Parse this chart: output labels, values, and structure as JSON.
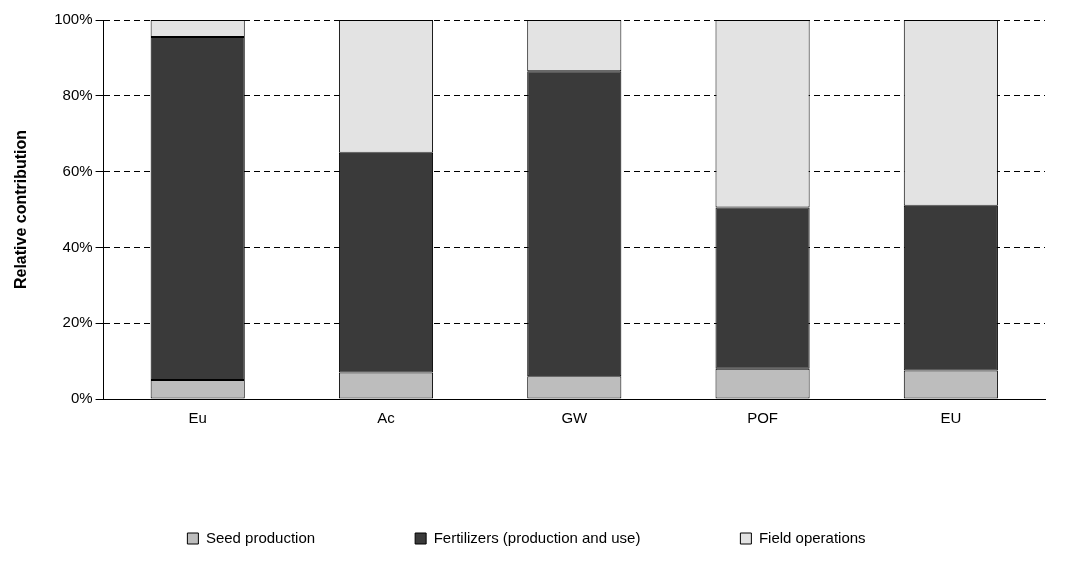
{
  "chart_data": {
    "type": "bar",
    "stacked": true,
    "ylabel": "Relative contribution",
    "categories": [
      "Eu",
      "Ac",
      "GW",
      "POF",
      "EU"
    ],
    "series": [
      {
        "name": "Seed production",
        "color": "#bdbdbd",
        "values": [
          5,
          7,
          6,
          8,
          7.5
        ]
      },
      {
        "name": "Fertilizers (production and use)",
        "color": "#3a3a3a",
        "values": [
          90.5,
          58,
          80.5,
          42.5,
          43.5
        ]
      },
      {
        "name": "Field operations",
        "color": "#e3e3e3",
        "values": [
          4.5,
          35,
          13.5,
          49.5,
          49
        ]
      }
    ],
    "ylim": [
      0,
      100
    ],
    "yticks": [
      {
        "value": 0,
        "label": "0%"
      },
      {
        "value": 20,
        "label": "20%"
      },
      {
        "value": 40,
        "label": "40%"
      },
      {
        "value": 60,
        "label": "60%"
      },
      {
        "value": 80,
        "label": "80%"
      },
      {
        "value": 100,
        "label": "100%"
      }
    ],
    "grid": "y",
    "legend": "bottom"
  }
}
